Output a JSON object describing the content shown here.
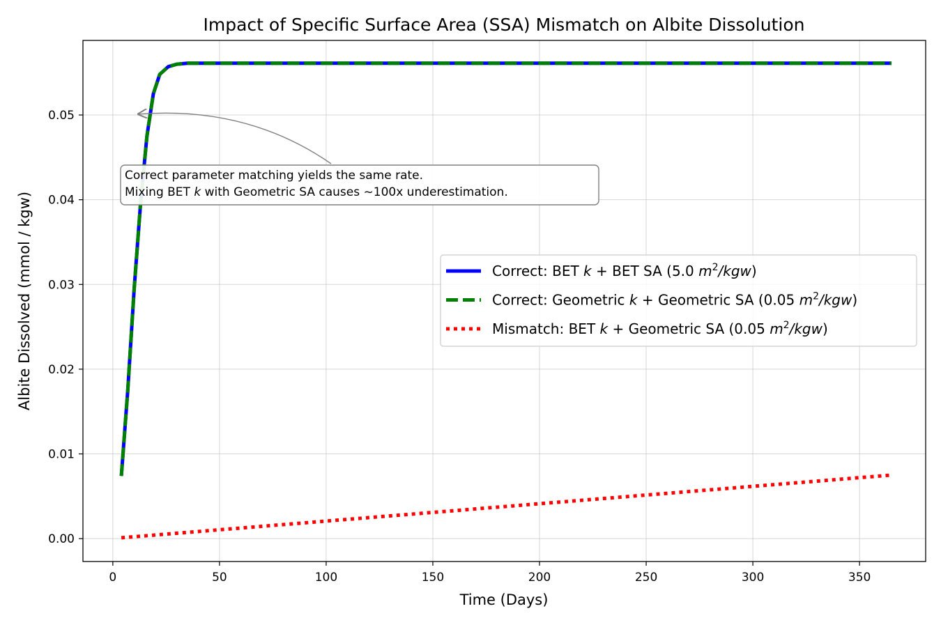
{
  "chart_data": {
    "type": "line",
    "title": "Impact of Specific Surface Area (SSA) Mismatch on Albite Dissolution",
    "xlabel": "Time (Days)",
    "ylabel": "Albite Dissolved (mmol / kgw)",
    "xlim": [
      -14,
      381
    ],
    "ylim": [
      -0.0027,
      0.0588
    ],
    "xticks": [
      0,
      50,
      100,
      150,
      200,
      250,
      300,
      350
    ],
    "xtick_labels": [
      "0",
      "50",
      "100",
      "150",
      "200",
      "250",
      "300",
      "350"
    ],
    "yticks": [
      0.0,
      0.01,
      0.02,
      0.03,
      0.04,
      0.05
    ],
    "ytick_labels": [
      "0.00",
      "0.01",
      "0.02",
      "0.03",
      "0.04",
      "0.05"
    ],
    "grid": true,
    "legend_position": "center-right",
    "series": [
      {
        "name": "Correct: BET k + BET SA (5.0 m²/kgw)",
        "legend_prefix": "Correct: BET ",
        "legend_k": "k",
        "legend_middle": " + BET SA (5.0 ",
        "legend_unit_base": "m",
        "legend_unit_sup": "2",
        "legend_unit_rest": "/kgw",
        "legend_suffix": ")",
        "color": "#0000ff",
        "style": "solid",
        "x": [
          4,
          7,
          10,
          13,
          16,
          19,
          22,
          26,
          30,
          35,
          40,
          50,
          75,
          100,
          150,
          200,
          250,
          300,
          365
        ],
        "y": [
          0.0074,
          0.0175,
          0.0295,
          0.0395,
          0.0475,
          0.0525,
          0.0548,
          0.0557,
          0.056,
          0.0561,
          0.0561,
          0.0561,
          0.0561,
          0.0561,
          0.0561,
          0.0561,
          0.0561,
          0.0561,
          0.0561
        ]
      },
      {
        "name": "Correct: Geometric k + Geometric SA (0.05 m²/kgw)",
        "legend_prefix": "Correct: Geometric ",
        "legend_k": "k",
        "legend_middle": " + Geometric SA (0.05 ",
        "legend_unit_base": "m",
        "legend_unit_sup": "2",
        "legend_unit_rest": "/kgw",
        "legend_suffix": ")",
        "color": "#008000",
        "style": "dashed",
        "x": [
          4,
          7,
          10,
          13,
          16,
          19,
          22,
          26,
          30,
          35,
          40,
          50,
          75,
          100,
          150,
          200,
          250,
          300,
          365
        ],
        "y": [
          0.0074,
          0.0175,
          0.0295,
          0.0395,
          0.0475,
          0.0525,
          0.0548,
          0.0557,
          0.056,
          0.0561,
          0.0561,
          0.0561,
          0.0561,
          0.0561,
          0.0561,
          0.0561,
          0.0561,
          0.0561,
          0.0561
        ]
      },
      {
        "name": "Mismatch: BET k + Geometric SA (0.05 m²/kgw)",
        "legend_prefix": "Mismatch: BET ",
        "legend_k": "k",
        "legend_middle": " + Geometric SA (0.05 ",
        "legend_unit_base": "m",
        "legend_unit_sup": "2",
        "legend_unit_rest": "/kgw",
        "legend_suffix": ")",
        "color": "#ff0000",
        "style": "dotted",
        "x": [
          4,
          365
        ],
        "y": [
          0.0001,
          0.0075
        ]
      }
    ],
    "annotation": {
      "line1": "Correct parameter matching yields the same rate.",
      "line2_prefix": "Mixing BET ",
      "line2_k": "k",
      "line2_suffix": " with Geometric SA causes ~100x underestimation.",
      "arrow_target": [
        11,
        0.0501
      ]
    }
  }
}
